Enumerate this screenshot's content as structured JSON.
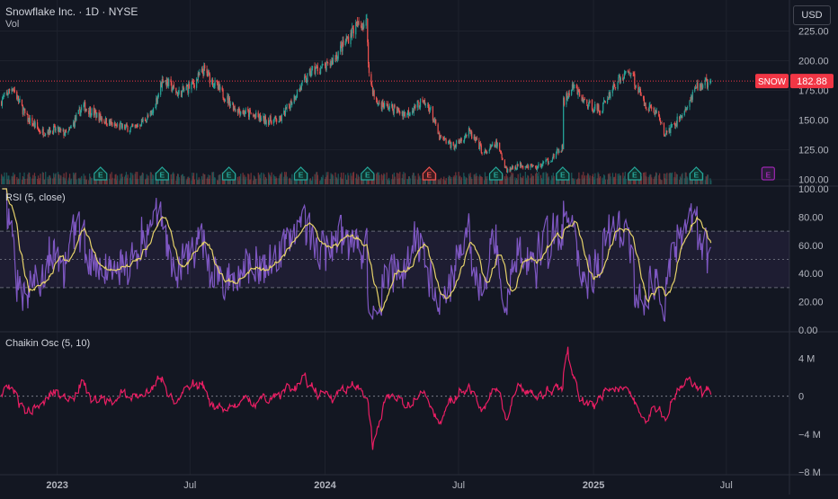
{
  "header": {
    "title": "Snowflake Inc. · 1D · NYSE",
    "volume_label": "Vol",
    "currency": "USD"
  },
  "price_tag": {
    "ticker": "SNOW",
    "value": "182.88",
    "color": "#f23645"
  },
  "rsi_label": "RSI (5, close)",
  "chaikin_label": "Chaikin Osc (5, 10)",
  "earnings_marker_label": "E",
  "colors": {
    "background": "#131722",
    "grid": "#1e222d",
    "divider": "#2a2e39",
    "up": "#26a69a",
    "down": "#ef5350",
    "rsi_line": "#7e57c2",
    "rsi_ma": "#e6d26a",
    "chaikin": "#e91e63",
    "axis_text": "#b2b5be",
    "price_line": "#f23645"
  },
  "chart_data": [
    {
      "type": "candlestick",
      "panel": "price",
      "title": "Snowflake Inc. · 1D · NYSE",
      "ylim": [
        96,
        245
      ],
      "y_ticks": [
        100,
        125,
        150,
        175,
        200,
        225
      ],
      "y_tick_labels": [
        "100.00",
        "125.00",
        "150.00",
        "175.00",
        "200.00",
        "225.00"
      ],
      "x_range": [
        "2022-10-15",
        "2025-09-25"
      ],
      "x_tick_labels": [
        {
          "date": "2023-01-01",
          "label": "2023"
        },
        {
          "date": "2023-07-01",
          "label": "Jul"
        },
        {
          "date": "2024-01-01",
          "label": "2024"
        },
        {
          "date": "2024-07-01",
          "label": "Jul"
        },
        {
          "date": "2025-01-01",
          "label": "2025"
        },
        {
          "date": "2025-07-01",
          "label": "Jul"
        }
      ],
      "last_price": 182.88,
      "close_anchors": [
        {
          "date": "2022-10-15",
          "close": 165
        },
        {
          "date": "2022-11-01",
          "close": 178
        },
        {
          "date": "2022-11-20",
          "close": 152
        },
        {
          "date": "2022-12-10",
          "close": 140
        },
        {
          "date": "2022-12-28",
          "close": 142
        },
        {
          "date": "2023-01-15",
          "close": 138
        },
        {
          "date": "2023-02-05",
          "close": 162
        },
        {
          "date": "2023-03-01",
          "close": 152
        },
        {
          "date": "2023-03-20",
          "close": 145
        },
        {
          "date": "2023-04-15",
          "close": 143
        },
        {
          "date": "2023-05-10",
          "close": 155
        },
        {
          "date": "2023-05-25",
          "close": 185
        },
        {
          "date": "2023-06-15",
          "close": 172
        },
        {
          "date": "2023-07-05",
          "close": 180
        },
        {
          "date": "2023-07-20",
          "close": 192
        },
        {
          "date": "2023-08-10",
          "close": 175
        },
        {
          "date": "2023-09-01",
          "close": 160
        },
        {
          "date": "2023-09-20",
          "close": 155
        },
        {
          "date": "2023-10-10",
          "close": 150
        },
        {
          "date": "2023-11-01",
          "close": 150
        },
        {
          "date": "2023-11-20",
          "close": 170
        },
        {
          "date": "2023-12-15",
          "close": 192
        },
        {
          "date": "2024-01-05",
          "close": 195
        },
        {
          "date": "2024-01-25",
          "close": 212
        },
        {
          "date": "2024-02-10",
          "close": 228
        },
        {
          "date": "2024-02-27",
          "close": 232
        },
        {
          "date": "2024-03-01",
          "close": 188
        },
        {
          "date": "2024-03-10",
          "close": 165
        },
        {
          "date": "2024-04-01",
          "close": 160
        },
        {
          "date": "2024-04-20",
          "close": 155
        },
        {
          "date": "2024-05-10",
          "close": 165
        },
        {
          "date": "2024-05-23",
          "close": 160
        },
        {
          "date": "2024-06-05",
          "close": 135
        },
        {
          "date": "2024-06-25",
          "close": 128
        },
        {
          "date": "2024-07-15",
          "close": 140
        },
        {
          "date": "2024-08-05",
          "close": 122
        },
        {
          "date": "2024-08-22",
          "close": 130
        },
        {
          "date": "2024-09-05",
          "close": 108
        },
        {
          "date": "2024-09-25",
          "close": 113
        },
        {
          "date": "2024-10-15",
          "close": 110
        },
        {
          "date": "2024-11-05",
          "close": 118
        },
        {
          "date": "2024-11-20",
          "close": 127
        },
        {
          "date": "2024-11-21",
          "close": 165
        },
        {
          "date": "2024-12-05",
          "close": 178
        },
        {
          "date": "2024-12-20",
          "close": 165
        },
        {
          "date": "2025-01-10",
          "close": 158
        },
        {
          "date": "2025-01-30",
          "close": 180
        },
        {
          "date": "2025-02-20",
          "close": 192
        },
        {
          "date": "2025-03-10",
          "close": 165
        },
        {
          "date": "2025-03-30",
          "close": 155
        },
        {
          "date": "2025-04-07",
          "close": 138
        },
        {
          "date": "2025-04-20",
          "close": 145
        },
        {
          "date": "2025-05-10",
          "close": 162
        },
        {
          "date": "2025-05-22",
          "close": 178
        },
        {
          "date": "2025-06-10",
          "close": 182.88
        }
      ],
      "earnings": [
        {
          "date": "2023-03-01",
          "kind": "beat"
        },
        {
          "date": "2023-05-24",
          "kind": "beat"
        },
        {
          "date": "2023-08-23",
          "kind": "beat"
        },
        {
          "date": "2023-11-29",
          "kind": "beat"
        },
        {
          "date": "2024-02-28",
          "kind": "beat"
        },
        {
          "date": "2024-05-22",
          "kind": "miss"
        },
        {
          "date": "2024-08-21",
          "kind": "beat"
        },
        {
          "date": "2024-11-20",
          "kind": "beat"
        },
        {
          "date": "2025-02-26",
          "kind": "beat"
        },
        {
          "date": "2025-05-21",
          "kind": "beat"
        },
        {
          "date": "2025-08-27",
          "kind": "upcoming"
        }
      ]
    },
    {
      "type": "line",
      "panel": "rsi",
      "title": "RSI (5, close)",
      "ylim": [
        0,
        100
      ],
      "y_tick_labels": [
        "0.00",
        "20.00",
        "40.00",
        "60.00",
        "80.00",
        "100.00"
      ],
      "bands": [
        30,
        50,
        70
      ],
      "series": [
        {
          "name": "RSI"
        },
        {
          "name": "RSI-based MA"
        }
      ]
    },
    {
      "type": "line",
      "panel": "chaikin",
      "title": "Chaikin Osc (5, 10)",
      "ylim": [
        -8000000,
        6500000
      ],
      "y_tick_labels": [
        "−8 M",
        "−4 M",
        "0",
        "4 M"
      ],
      "zero_line": true,
      "series": [
        {
          "name": "Chaikin Osc"
        }
      ]
    }
  ]
}
